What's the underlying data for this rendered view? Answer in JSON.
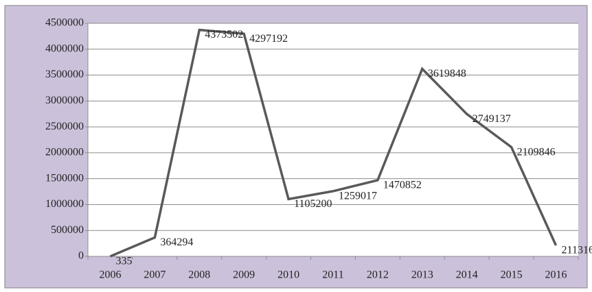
{
  "chart_data": {
    "type": "line",
    "categories": [
      "2006",
      "2007",
      "2008",
      "2009",
      "2010",
      "2011",
      "2012",
      "2013",
      "2014",
      "2015",
      "2016"
    ],
    "values": [
      335,
      364294,
      4373502,
      4297192,
      1105200,
      1259017,
      1470852,
      3619848,
      2749137,
      2109846,
      211316
    ],
    "color": "#595959",
    "ylim": [
      0,
      4500000
    ],
    "yticks": [
      0,
      500000,
      1000000,
      1500000,
      2000000,
      2500000,
      3000000,
      3500000,
      4000000,
      4500000
    ],
    "grid": true
  }
}
